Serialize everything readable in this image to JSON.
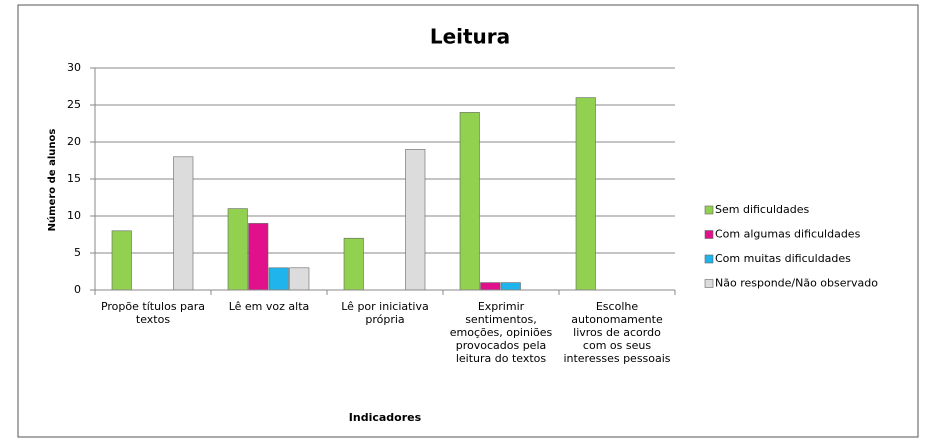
{
  "chart_data": {
    "type": "bar",
    "title": "Leitura",
    "x_label": "Indicadores",
    "y_label": "Número de alunos",
    "categories": [
      "Propõe títulos para textos",
      "Lê em voz alta",
      "Lê por iniciativa própria",
      "Exprimir sentimentos, emoções, opiniões provocados pela leitura do textos",
      "Escolhe autonomamente livros de acordo com os seus interesses pessoais"
    ],
    "series": [
      {
        "name": "Sem dificuldades",
        "color": "#92d050",
        "values": [
          8,
          11,
          7,
          24,
          26
        ]
      },
      {
        "name": "Com algumas dificuldades",
        "color": "#e0118a",
        "values": [
          0,
          9,
          0,
          1,
          0
        ]
      },
      {
        "name": "Com muitas dificuldades",
        "color": "#1fb4ec",
        "values": [
          0,
          3,
          0,
          1,
          0
        ]
      },
      {
        "name": "Não responde/Não observado",
        "color": "#dcdcdc",
        "values": [
          18,
          3,
          19,
          0,
          0
        ]
      }
    ],
    "ylim": [
      0,
      30
    ],
    "yticks": [
      0,
      5,
      10,
      15,
      20,
      25,
      30
    ],
    "grid": true,
    "legend": "right"
  }
}
